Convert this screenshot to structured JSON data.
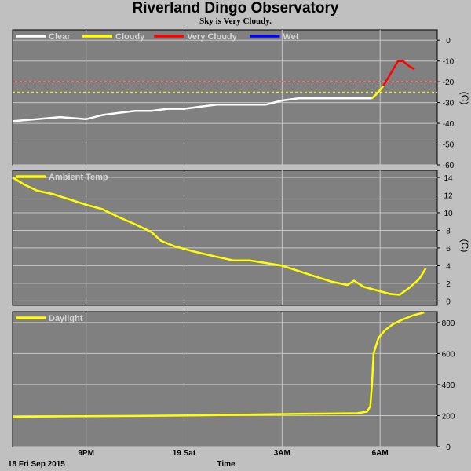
{
  "title": "Riverland Dingo Observatory",
  "subtitle": "Sky is Very Cloudy.",
  "colors": {
    "background": "#c0c0c0",
    "plot_bg": "#808080",
    "grid": "#c8c8c8",
    "clear": "#ffffff",
    "cloudy": "#ffff00",
    "very_cloudy": "#ff0000",
    "wet": "#0000ff"
  },
  "x_axis": {
    "label": "Time",
    "date_label": "18 Fri Sep 2015",
    "ticks": [
      {
        "label": "9PM",
        "t": 3.5
      },
      {
        "label": "19 Sat",
        "t": 6.5
      },
      {
        "label": "3AM",
        "t": 9.5
      },
      {
        "label": "6AM",
        "t": 12.5
      }
    ],
    "range": [
      1.25,
      14.25
    ]
  },
  "chart_data": [
    {
      "type": "line",
      "panel": "sky",
      "legend": [
        "Clear",
        "Cloudy",
        "Very Cloudy",
        "Wet"
      ],
      "ylabel": "(C)",
      "ylim": [
        -60,
        5
      ],
      "yticks": [
        0,
        -10,
        -20,
        -30,
        -40,
        -50,
        -60
      ],
      "thresholds": [
        {
          "name": "Very Cloudy",
          "value": -20,
          "color": "#ff0000"
        },
        {
          "name": "Cloudy",
          "value": -25,
          "color": "#ffff00"
        }
      ],
      "series": [
        {
          "name": "Clear",
          "color": "#ffffff",
          "points": [
            [
              1.25,
              -39
            ],
            [
              2,
              -38
            ],
            [
              2.7,
              -37
            ],
            [
              3.5,
              -38
            ],
            [
              4,
              -36
            ],
            [
              4.5,
              -35
            ],
            [
              5,
              -34
            ],
            [
              5.5,
              -34
            ],
            [
              6,
              -33
            ],
            [
              6.5,
              -33
            ],
            [
              7,
              -32
            ],
            [
              7.5,
              -31
            ],
            [
              8,
              -31
            ],
            [
              8.5,
              -31
            ],
            [
              9,
              -31
            ],
            [
              9.5,
              -29
            ],
            [
              10,
              -28
            ],
            [
              10.5,
              -28
            ],
            [
              11,
              -28
            ],
            [
              11.5,
              -28
            ],
            [
              12,
              -28
            ],
            [
              12.25,
              -28
            ]
          ]
        },
        {
          "name": "Cloudy",
          "color": "#ffff00",
          "points": [
            [
              12.25,
              -28
            ],
            [
              12.45,
              -25
            ],
            [
              12.6,
              -22
            ]
          ]
        },
        {
          "name": "Very Cloudy",
          "color": "#ff0000",
          "points": [
            [
              12.6,
              -22
            ],
            [
              12.75,
              -18
            ],
            [
              12.9,
              -14
            ],
            [
              13.05,
              -10
            ],
            [
              13.2,
              -10
            ],
            [
              13.35,
              -12
            ],
            [
              13.55,
              -14
            ]
          ]
        }
      ]
    },
    {
      "type": "line",
      "panel": "ambient",
      "legend": [
        "Ambient Temp"
      ],
      "ylabel": "(C)",
      "ylim": [
        -0.5,
        14.8
      ],
      "yticks": [
        14,
        12,
        10,
        8,
        6,
        4,
        2,
        0
      ],
      "series": [
        {
          "name": "Ambient Temp",
          "color": "#ffff00",
          "points": [
            [
              1.25,
              14
            ],
            [
              1.6,
              13.2
            ],
            [
              2,
              12.5
            ],
            [
              2.5,
              12.1
            ],
            [
              3,
              11.5
            ],
            [
              3.5,
              10.9
            ],
            [
              4,
              10.4
            ],
            [
              4.5,
              9.5
            ],
            [
              5,
              8.7
            ],
            [
              5.5,
              7.8
            ],
            [
              5.8,
              6.8
            ],
            [
              6.2,
              6.2
            ],
            [
              6.8,
              5.6
            ],
            [
              7.5,
              5
            ],
            [
              8,
              4.6
            ],
            [
              8.5,
              4.6
            ],
            [
              9,
              4.3
            ],
            [
              9.5,
              4
            ],
            [
              10,
              3.4
            ],
            [
              10.5,
              2.8
            ],
            [
              11,
              2.2
            ],
            [
              11.5,
              1.8
            ],
            [
              11.7,
              2.3
            ],
            [
              12,
              1.6
            ],
            [
              12.5,
              1.1
            ],
            [
              12.8,
              0.8
            ],
            [
              13.1,
              0.7
            ],
            [
              13.4,
              1.5
            ],
            [
              13.7,
              2.5
            ],
            [
              13.9,
              3.7
            ]
          ]
        }
      ]
    },
    {
      "type": "line",
      "panel": "daylight",
      "legend": [
        "Daylight"
      ],
      "ylabel": "",
      "ylim": [
        0,
        870
      ],
      "yticks": [
        800,
        600,
        400,
        200,
        0
      ],
      "series": [
        {
          "name": "Daylight",
          "color": "#ffff00",
          "points": [
            [
              1.25,
              190
            ],
            [
              2,
              193
            ],
            [
              3,
              195
            ],
            [
              4,
              197
            ],
            [
              5,
              198
            ],
            [
              6,
              200
            ],
            [
              7,
              202
            ],
            [
              8,
              205
            ],
            [
              9,
              208
            ],
            [
              10,
              211
            ],
            [
              11,
              213
            ],
            [
              11.8,
              215
            ],
            [
              12.1,
              225
            ],
            [
              12.2,
              260
            ],
            [
              12.25,
              400
            ],
            [
              12.3,
              600
            ],
            [
              12.45,
              700
            ],
            [
              12.65,
              750
            ],
            [
              12.9,
              790
            ],
            [
              13.2,
              820
            ],
            [
              13.5,
              845
            ],
            [
              13.85,
              865
            ]
          ]
        }
      ]
    }
  ]
}
